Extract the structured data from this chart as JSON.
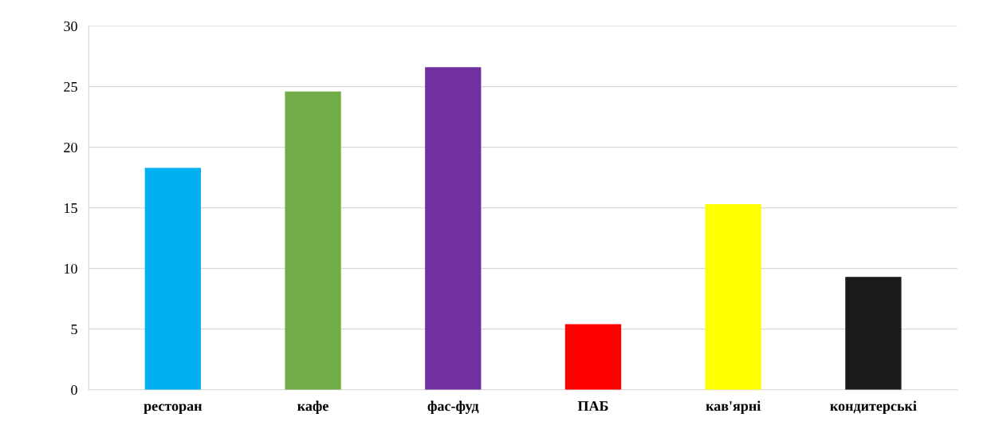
{
  "chart_data": {
    "type": "bar",
    "categories": [
      "ресторан",
      "кафе",
      "фас-фуд",
      "ПАБ",
      "кав'ярні",
      "кондитерські"
    ],
    "values": [
      18.3,
      24.6,
      26.6,
      5.4,
      15.3,
      9.3
    ],
    "colors": [
      "#00b0f0",
      "#70ad47",
      "#7030a0",
      "#ff0000",
      "#ffff00",
      "#1a1a1a"
    ],
    "ylim": [
      0,
      30
    ],
    "yticks": [
      0,
      5,
      10,
      15,
      20,
      25,
      30
    ],
    "grid": "y"
  }
}
